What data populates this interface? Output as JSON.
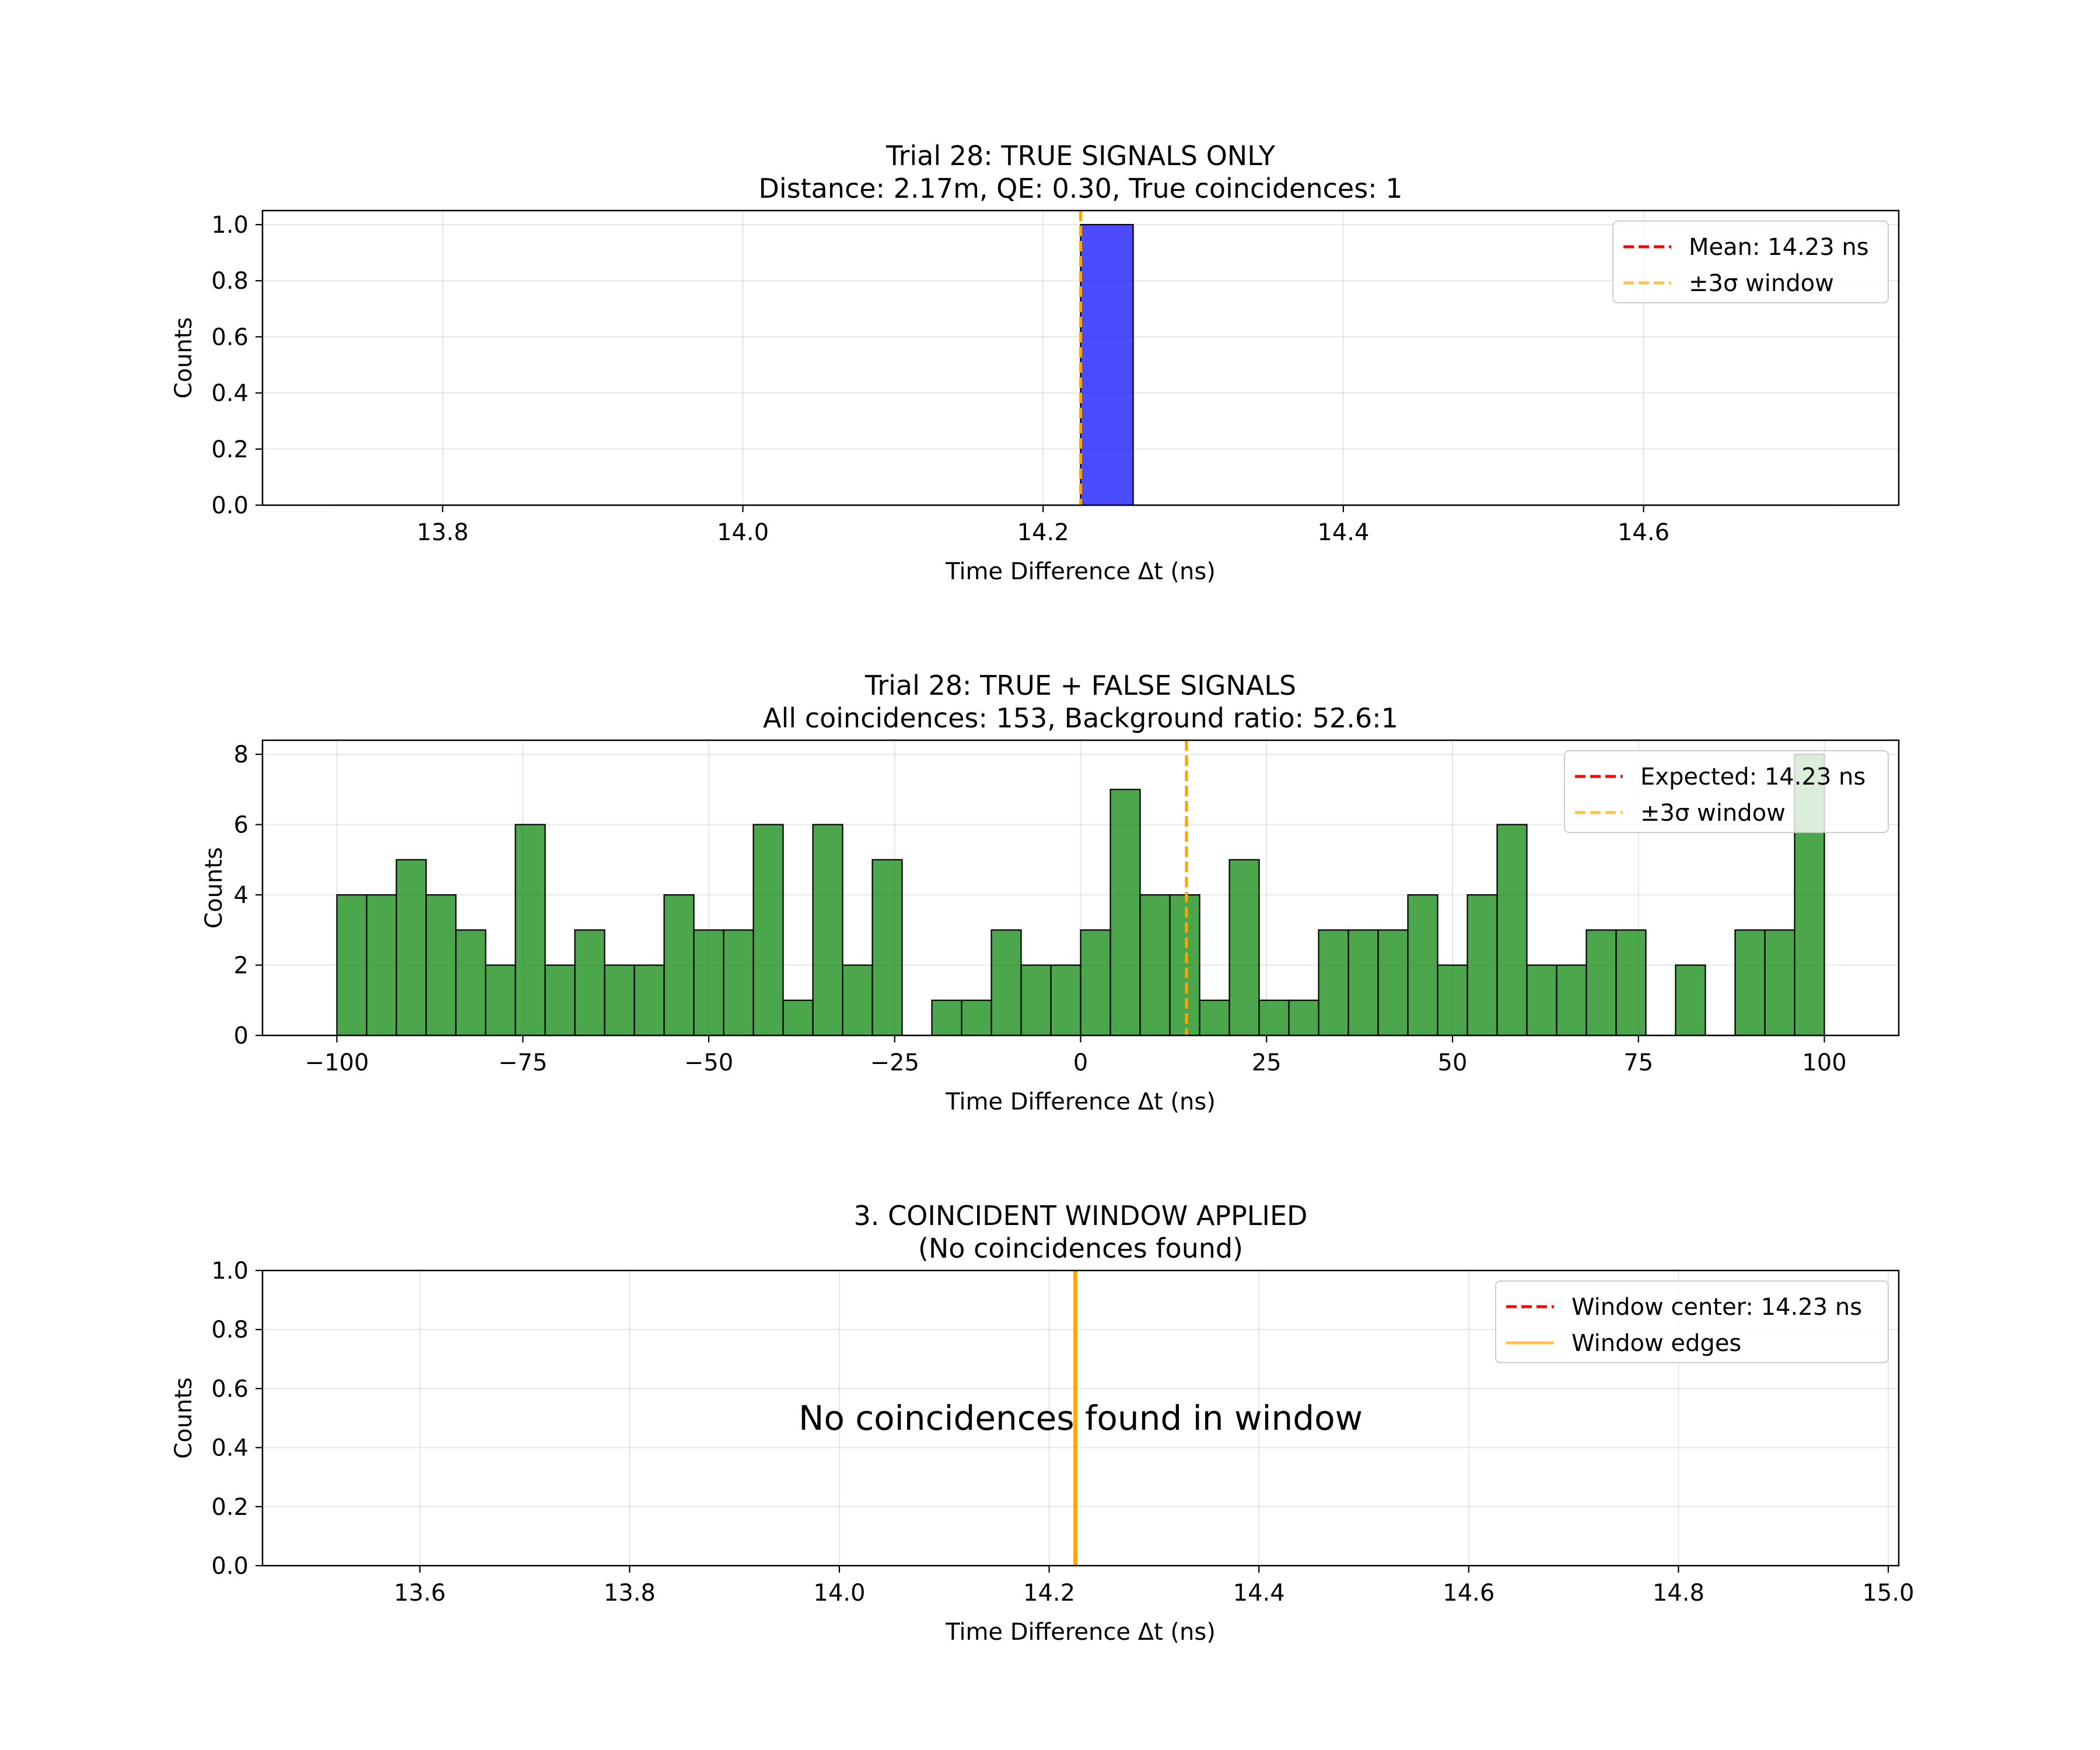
{
  "chart_data": [
    {
      "type": "bar",
      "title": "Trial 28: TRUE SIGNALS ONLY",
      "subtitle": "Distance: 2.17m, QE: 0.30, True coincidences: 1",
      "xlabel": "Time Difference Δt (ns)",
      "ylabel": "Counts",
      "xlim": [
        13.68,
        14.77
      ],
      "ylim": [
        0,
        1.05
      ],
      "grid": true,
      "x_ticks": [
        13.8,
        14.0,
        14.2,
        14.4,
        14.6
      ],
      "x_tick_labels": [
        "13.8",
        "14.0",
        "14.2",
        "14.4",
        "14.6"
      ],
      "y_ticks": [
        0.0,
        0.2,
        0.4,
        0.6,
        0.8,
        1.0
      ],
      "y_tick_labels": [
        "0.0",
        "0.2",
        "0.4",
        "0.6",
        "0.8",
        "1.0"
      ],
      "bar_color": "#0000ff",
      "bar_alpha": 0.7,
      "bins": [
        {
          "x0": 13.727,
          "x1": 14.225,
          "value": 0
        },
        {
          "x0": 14.225,
          "x1": 14.26,
          "value": 1
        },
        {
          "x0": 14.26,
          "x1": 14.727,
          "value": 0
        }
      ],
      "lines": [
        {
          "x": 14.225,
          "color": "#ff0000",
          "style": "dashed"
        },
        {
          "x": 14.225,
          "color": "#ffa500",
          "style": "dashed"
        }
      ],
      "legend": {
        "position": "upper right",
        "entries": [
          {
            "label": "Mean: 14.23 ns",
            "color": "#ff0000",
            "style": "dashed"
          },
          {
            "label": "±3σ window",
            "color": "#ffa500",
            "style": "dashed",
            "alpha": 0.7
          }
        ]
      }
    },
    {
      "type": "bar",
      "title": "Trial 28: TRUE + FALSE SIGNALS",
      "subtitle": "All coincidences: 153, Background ratio: 52.6:1",
      "xlabel": "Time Difference Δt (ns)",
      "ylabel": "Counts",
      "xlim": [
        -110,
        110
      ],
      "ylim": [
        0,
        8.4
      ],
      "grid": true,
      "x_ticks": [
        -100,
        -75,
        -50,
        -25,
        0,
        25,
        50,
        75,
        100
      ],
      "x_tick_labels": [
        "−100",
        "−75",
        "−50",
        "−25",
        "0",
        "25",
        "50",
        "75",
        "100"
      ],
      "y_ticks": [
        0,
        2,
        4,
        6,
        8
      ],
      "y_tick_labels": [
        "0",
        "2",
        "4",
        "6",
        "8"
      ],
      "bar_color": "#008000",
      "bar_alpha": 0.7,
      "bin_start": -100,
      "bin_width": 4,
      "values": [
        4,
        4,
        5,
        4,
        3,
        2,
        6,
        2,
        3,
        2,
        2,
        4,
        3,
        3,
        6,
        1,
        6,
        2,
        5,
        0,
        1,
        1,
        3,
        2,
        2,
        3,
        7,
        4,
        4,
        1,
        5,
        1,
        1,
        3,
        3,
        3,
        4,
        2,
        4,
        6,
        2,
        2,
        3,
        3,
        0,
        2,
        0,
        3,
        3,
        8
      ],
      "lines": [
        {
          "x": 14.23,
          "color": "#ff0000",
          "style": "dashed"
        },
        {
          "x": 14.23,
          "color": "#ffa500",
          "style": "dashed"
        }
      ],
      "legend": {
        "position": "upper right",
        "entries": [
          {
            "label": "Expected: 14.23 ns",
            "color": "#ff0000",
            "style": "dashed"
          },
          {
            "label": "±3σ window",
            "color": "#ffa500",
            "style": "dashed",
            "alpha": 0.7
          }
        ]
      }
    },
    {
      "type": "bar",
      "title": "3. COINCIDENT WINDOW APPLIED",
      "subtitle": "(No coincidences found)",
      "xlabel": "Time Difference Δt (ns)",
      "ylabel": "Counts",
      "xlim": [
        13.45,
        15.01
      ],
      "ylim": [
        0,
        1
      ],
      "grid": true,
      "x_ticks": [
        13.6,
        13.8,
        14.0,
        14.2,
        14.4,
        14.6,
        14.8,
        15.0
      ],
      "x_tick_labels": [
        "13.6",
        "13.8",
        "14.0",
        "14.2",
        "14.4",
        "14.6",
        "14.8",
        "15.0"
      ],
      "y_ticks": [
        0.0,
        0.2,
        0.4,
        0.6,
        0.8,
        1.0
      ],
      "y_tick_labels": [
        "0.0",
        "0.2",
        "0.4",
        "0.6",
        "0.8",
        "1.0"
      ],
      "values": [],
      "annotation": "No coincidences found in window",
      "lines": [
        {
          "x": 14.225,
          "color": "#ff0000",
          "style": "dashed"
        },
        {
          "x": 14.2245,
          "color": "#ffa500",
          "style": "solid"
        },
        {
          "x": 14.2255,
          "color": "#ffa500",
          "style": "solid"
        }
      ],
      "legend": {
        "position": "upper right",
        "entries": [
          {
            "label": "Window center: 14.23 ns",
            "color": "#ff0000",
            "style": "dashed"
          },
          {
            "label": "Window edges",
            "color": "#ffa500",
            "style": "solid",
            "alpha": 0.7
          }
        ]
      }
    }
  ]
}
